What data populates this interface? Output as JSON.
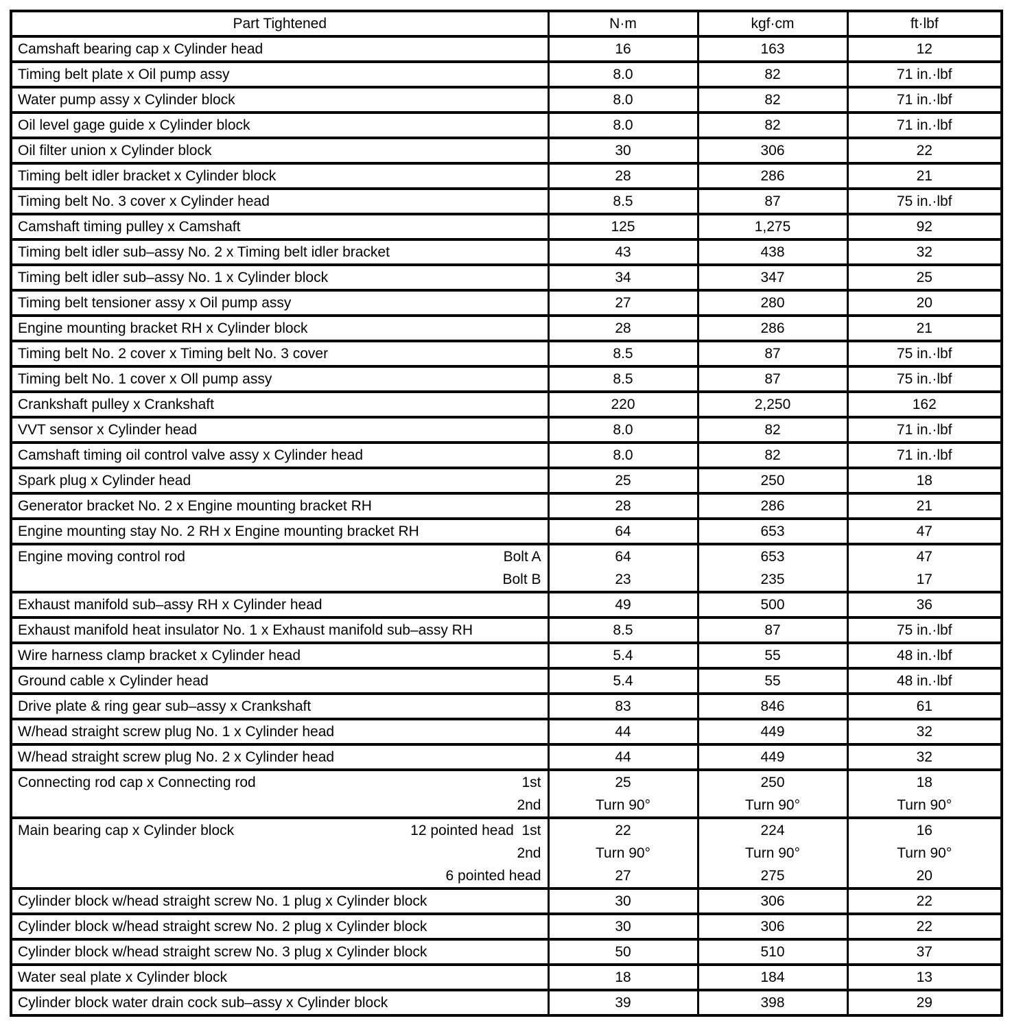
{
  "table": {
    "headers": {
      "part": "Part Tightened",
      "nm": "N·m",
      "kgfcm": "kgf·cm",
      "ftlbf": "ft·lbf"
    },
    "rows": [
      {
        "part": "Camshaft bearing cap x Cylinder head",
        "sub": [],
        "nm": [
          "16"
        ],
        "kgfcm": [
          "163"
        ],
        "ftlbf": [
          "12"
        ]
      },
      {
        "part": "Timing belt plate x Oil pump assy",
        "sub": [],
        "nm": [
          "8.0"
        ],
        "kgfcm": [
          "82"
        ],
        "ftlbf": [
          "71 in.·lbf"
        ]
      },
      {
        "part": "Water pump assy x Cylinder block",
        "sub": [],
        "nm": [
          "8.0"
        ],
        "kgfcm": [
          "82"
        ],
        "ftlbf": [
          "71 in.·lbf"
        ]
      },
      {
        "part": "Oil level gage guide x Cylinder block",
        "sub": [],
        "nm": [
          "8.0"
        ],
        "kgfcm": [
          "82"
        ],
        "ftlbf": [
          "71 in.·lbf"
        ]
      },
      {
        "part": "Oil filter union x Cylinder block",
        "sub": [],
        "nm": [
          "30"
        ],
        "kgfcm": [
          "306"
        ],
        "ftlbf": [
          "22"
        ]
      },
      {
        "part": "Timing belt idler bracket x Cylinder block",
        "sub": [],
        "nm": [
          "28"
        ],
        "kgfcm": [
          "286"
        ],
        "ftlbf": [
          "21"
        ]
      },
      {
        "part": "Timing belt No. 3 cover x Cylinder head",
        "sub": [],
        "nm": [
          "8.5"
        ],
        "kgfcm": [
          "87"
        ],
        "ftlbf": [
          "75 in.·lbf"
        ]
      },
      {
        "part": "Camshaft timing pulley x Camshaft",
        "sub": [],
        "nm": [
          "125"
        ],
        "kgfcm": [
          "1,275"
        ],
        "ftlbf": [
          "92"
        ]
      },
      {
        "part": "Timing belt idler sub–assy No. 2 x Timing belt idler bracket",
        "sub": [],
        "nm": [
          "43"
        ],
        "kgfcm": [
          "438"
        ],
        "ftlbf": [
          "32"
        ]
      },
      {
        "part": "Timing belt idler sub–assy No. 1 x Cylinder block",
        "sub": [],
        "nm": [
          "34"
        ],
        "kgfcm": [
          "347"
        ],
        "ftlbf": [
          "25"
        ]
      },
      {
        "part": "Timing belt tensioner assy x Oil pump assy",
        "sub": [],
        "nm": [
          "27"
        ],
        "kgfcm": [
          "280"
        ],
        "ftlbf": [
          "20"
        ]
      },
      {
        "part": "Engine mounting bracket RH x Cylinder block",
        "sub": [],
        "nm": [
          "28"
        ],
        "kgfcm": [
          "286"
        ],
        "ftlbf": [
          "21"
        ]
      },
      {
        "part": "Timing belt No. 2 cover x Timing belt No. 3 cover",
        "sub": [],
        "nm": [
          "8.5"
        ],
        "kgfcm": [
          "87"
        ],
        "ftlbf": [
          "75 in.·lbf"
        ]
      },
      {
        "part": "Timing belt No. 1 cover x Oll pump assy",
        "sub": [],
        "nm": [
          "8.5"
        ],
        "kgfcm": [
          "87"
        ],
        "ftlbf": [
          "75 in.·lbf"
        ]
      },
      {
        "part": "Crankshaft pulley x Crankshaft",
        "sub": [],
        "nm": [
          "220"
        ],
        "kgfcm": [
          "2,250"
        ],
        "ftlbf": [
          "162"
        ]
      },
      {
        "part": "VVT sensor x Cylinder head",
        "sub": [],
        "nm": [
          "8.0"
        ],
        "kgfcm": [
          "82"
        ],
        "ftlbf": [
          "71 in.·lbf"
        ]
      },
      {
        "part": "Camshaft timing oil control valve assy x Cylinder head",
        "sub": [],
        "nm": [
          "8.0"
        ],
        "kgfcm": [
          "82"
        ],
        "ftlbf": [
          "71 in.·lbf"
        ]
      },
      {
        "part": "Spark plug x Cylinder head",
        "sub": [],
        "nm": [
          "25"
        ],
        "kgfcm": [
          "250"
        ],
        "ftlbf": [
          "18"
        ]
      },
      {
        "part": "Generator bracket No. 2 x Engine mounting bracket RH",
        "sub": [],
        "nm": [
          "28"
        ],
        "kgfcm": [
          "286"
        ],
        "ftlbf": [
          "21"
        ]
      },
      {
        "part": "Engine mounting stay No. 2 RH x Engine mounting bracket RH",
        "sub": [],
        "nm": [
          "64"
        ],
        "kgfcm": [
          "653"
        ],
        "ftlbf": [
          "47"
        ]
      },
      {
        "part": "Engine moving control rod",
        "sub": [
          "Bolt A",
          "Bolt B"
        ],
        "nm": [
          "64",
          "23"
        ],
        "kgfcm": [
          "653",
          "235"
        ],
        "ftlbf": [
          "47",
          "17"
        ]
      },
      {
        "part": "Exhaust manifold sub–assy RH x Cylinder head",
        "sub": [],
        "nm": [
          "49"
        ],
        "kgfcm": [
          "500"
        ],
        "ftlbf": [
          "36"
        ]
      },
      {
        "part": "Exhaust manifold heat insulator No. 1 x Exhaust manifold sub–assy RH",
        "sub": [],
        "nm": [
          "8.5"
        ],
        "kgfcm": [
          "87"
        ],
        "ftlbf": [
          "75 in.·lbf"
        ]
      },
      {
        "part": "Wire harness clamp bracket x Cylinder head",
        "sub": [],
        "nm": [
          "5.4"
        ],
        "kgfcm": [
          "55"
        ],
        "ftlbf": [
          "48 in.·lbf"
        ]
      },
      {
        "part": "Ground cable x Cylinder head",
        "sub": [],
        "nm": [
          "5.4"
        ],
        "kgfcm": [
          "55"
        ],
        "ftlbf": [
          "48 in.·lbf"
        ]
      },
      {
        "part": "Drive plate & ring gear sub–assy x Crankshaft",
        "sub": [],
        "nm": [
          "83"
        ],
        "kgfcm": [
          "846"
        ],
        "ftlbf": [
          "61"
        ]
      },
      {
        "part": "W/head straight screw plug No. 1 x Cylinder head",
        "sub": [],
        "nm": [
          "44"
        ],
        "kgfcm": [
          "449"
        ],
        "ftlbf": [
          "32"
        ]
      },
      {
        "part": "W/head straight screw plug No. 2 x Cylinder head",
        "sub": [],
        "nm": [
          "44"
        ],
        "kgfcm": [
          "449"
        ],
        "ftlbf": [
          "32"
        ]
      },
      {
        "part": "Connecting rod cap x Connecting rod",
        "sub": [
          "1st",
          "2nd"
        ],
        "nm": [
          "25",
          "Turn 90°"
        ],
        "kgfcm": [
          "250",
          "Turn 90°"
        ],
        "ftlbf": [
          "18",
          "Turn 90°"
        ]
      },
      {
        "part": "Main bearing cap x Cylinder block",
        "sub": [
          "12 pointed head  1st",
          "2nd",
          "6 pointed head"
        ],
        "nm": [
          "22",
          "Turn 90°",
          "27"
        ],
        "kgfcm": [
          "224",
          "Turn 90°",
          "275"
        ],
        "ftlbf": [
          "16",
          "Turn 90°",
          "20"
        ]
      },
      {
        "part": "Cylinder block w/head straight screw No. 1 plug x Cylinder block",
        "sub": [],
        "nm": [
          "30"
        ],
        "kgfcm": [
          "306"
        ],
        "ftlbf": [
          "22"
        ]
      },
      {
        "part": "Cylinder block w/head straight screw No. 2 plug x Cylinder block",
        "sub": [],
        "nm": [
          "30"
        ],
        "kgfcm": [
          "306"
        ],
        "ftlbf": [
          "22"
        ]
      },
      {
        "part": "Cylinder block w/head straight screw No. 3 plug x Cylinder block",
        "sub": [],
        "nm": [
          "50"
        ],
        "kgfcm": [
          "510"
        ],
        "ftlbf": [
          "37"
        ]
      },
      {
        "part": "Water seal plate x Cylinder block",
        "sub": [],
        "nm": [
          "18"
        ],
        "kgfcm": [
          "184"
        ],
        "ftlbf": [
          "13"
        ]
      },
      {
        "part": "Cylinder block water drain cock sub–assy x Cylinder block",
        "sub": [],
        "nm": [
          "39"
        ],
        "kgfcm": [
          "398"
        ],
        "ftlbf": [
          "29"
        ]
      }
    ]
  }
}
